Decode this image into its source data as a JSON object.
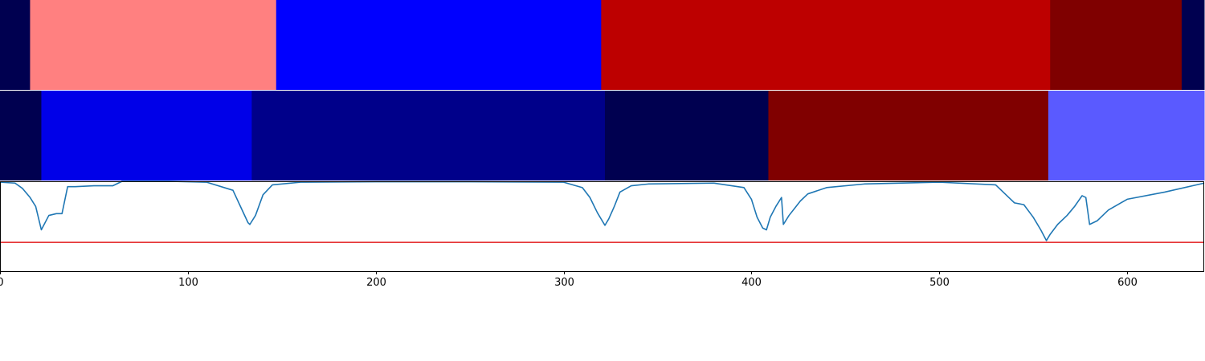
{
  "chart_data": [
    {
      "type": "heatmap",
      "xlim": [
        0,
        641
      ],
      "segments": [
        {
          "start": 0,
          "end": 16,
          "color": "#000050"
        },
        {
          "start": 16,
          "end": 147,
          "color": "#ff8080"
        },
        {
          "start": 147,
          "end": 320,
          "color": "#0000ff"
        },
        {
          "start": 320,
          "end": 559,
          "color": "#bd0000"
        },
        {
          "start": 559,
          "end": 629,
          "color": "#7f0000"
        },
        {
          "start": 629,
          "end": 641,
          "color": "#000050"
        }
      ]
    },
    {
      "type": "heatmap",
      "xlim": [
        0,
        641
      ],
      "segments": [
        {
          "start": 0,
          "end": 22,
          "color": "#000050"
        },
        {
          "start": 22,
          "end": 134,
          "color": "#0000e8"
        },
        {
          "start": 134,
          "end": 322,
          "color": "#00008a"
        },
        {
          "start": 322,
          "end": 409,
          "color": "#000050"
        },
        {
          "start": 409,
          "end": 558,
          "color": "#800000"
        },
        {
          "start": 558,
          "end": 641,
          "color": "#5a5aff"
        }
      ]
    },
    {
      "type": "line",
      "xlim": [
        0,
        641
      ],
      "ylim": [
        0,
        1
      ],
      "threshold": {
        "y": 0.32,
        "color": "#e31a1c"
      },
      "series": [
        {
          "color": "#1f77b4",
          "x": [
            0,
            8,
            12,
            16,
            19,
            22,
            26,
            30,
            33,
            36,
            40,
            50,
            60,
            65,
            68,
            72,
            90,
            110,
            124,
            128,
            132,
            133,
            136,
            140,
            145,
            160,
            200,
            250,
            300,
            310,
            314,
            318,
            322,
            324,
            327,
            330,
            336,
            345,
            380,
            396,
            400,
            403,
            406,
            408,
            410,
            413,
            416,
            417,
            420,
            423,
            426,
            430,
            440,
            460,
            500,
            530,
            534,
            537,
            540,
            545,
            550,
            554,
            557,
            559,
            563,
            568,
            572,
            576,
            578,
            580,
            584,
            590,
            600,
            620,
            641
          ],
          "y": [
            0.99,
            0.98,
            0.92,
            0.82,
            0.72,
            0.46,
            0.62,
            0.64,
            0.64,
            0.94,
            0.94,
            0.95,
            0.95,
            1.01,
            1.01,
            1.01,
            1.01,
            0.99,
            0.9,
            0.72,
            0.54,
            0.52,
            0.62,
            0.85,
            0.96,
            0.99,
            0.995,
            0.995,
            0.99,
            0.93,
            0.82,
            0.65,
            0.51,
            0.58,
            0.72,
            0.88,
            0.95,
            0.97,
            0.98,
            0.93,
            0.8,
            0.6,
            0.48,
            0.46,
            0.6,
            0.72,
            0.82,
            0.52,
            0.62,
            0.7,
            0.78,
            0.86,
            0.93,
            0.97,
            0.99,
            0.96,
            0.88,
            0.82,
            0.76,
            0.74,
            0.6,
            0.46,
            0.34,
            0.41,
            0.52,
            0.62,
            0.72,
            0.84,
            0.82,
            0.52,
            0.56,
            0.68,
            0.8,
            0.88,
            0.98
          ]
        }
      ]
    }
  ],
  "axis": {
    "xticks": [
      0,
      100,
      200,
      300,
      400,
      500,
      600
    ],
    "xtick_labels": [
      "0",
      "100",
      "200",
      "300",
      "400",
      "500",
      "600"
    ]
  }
}
